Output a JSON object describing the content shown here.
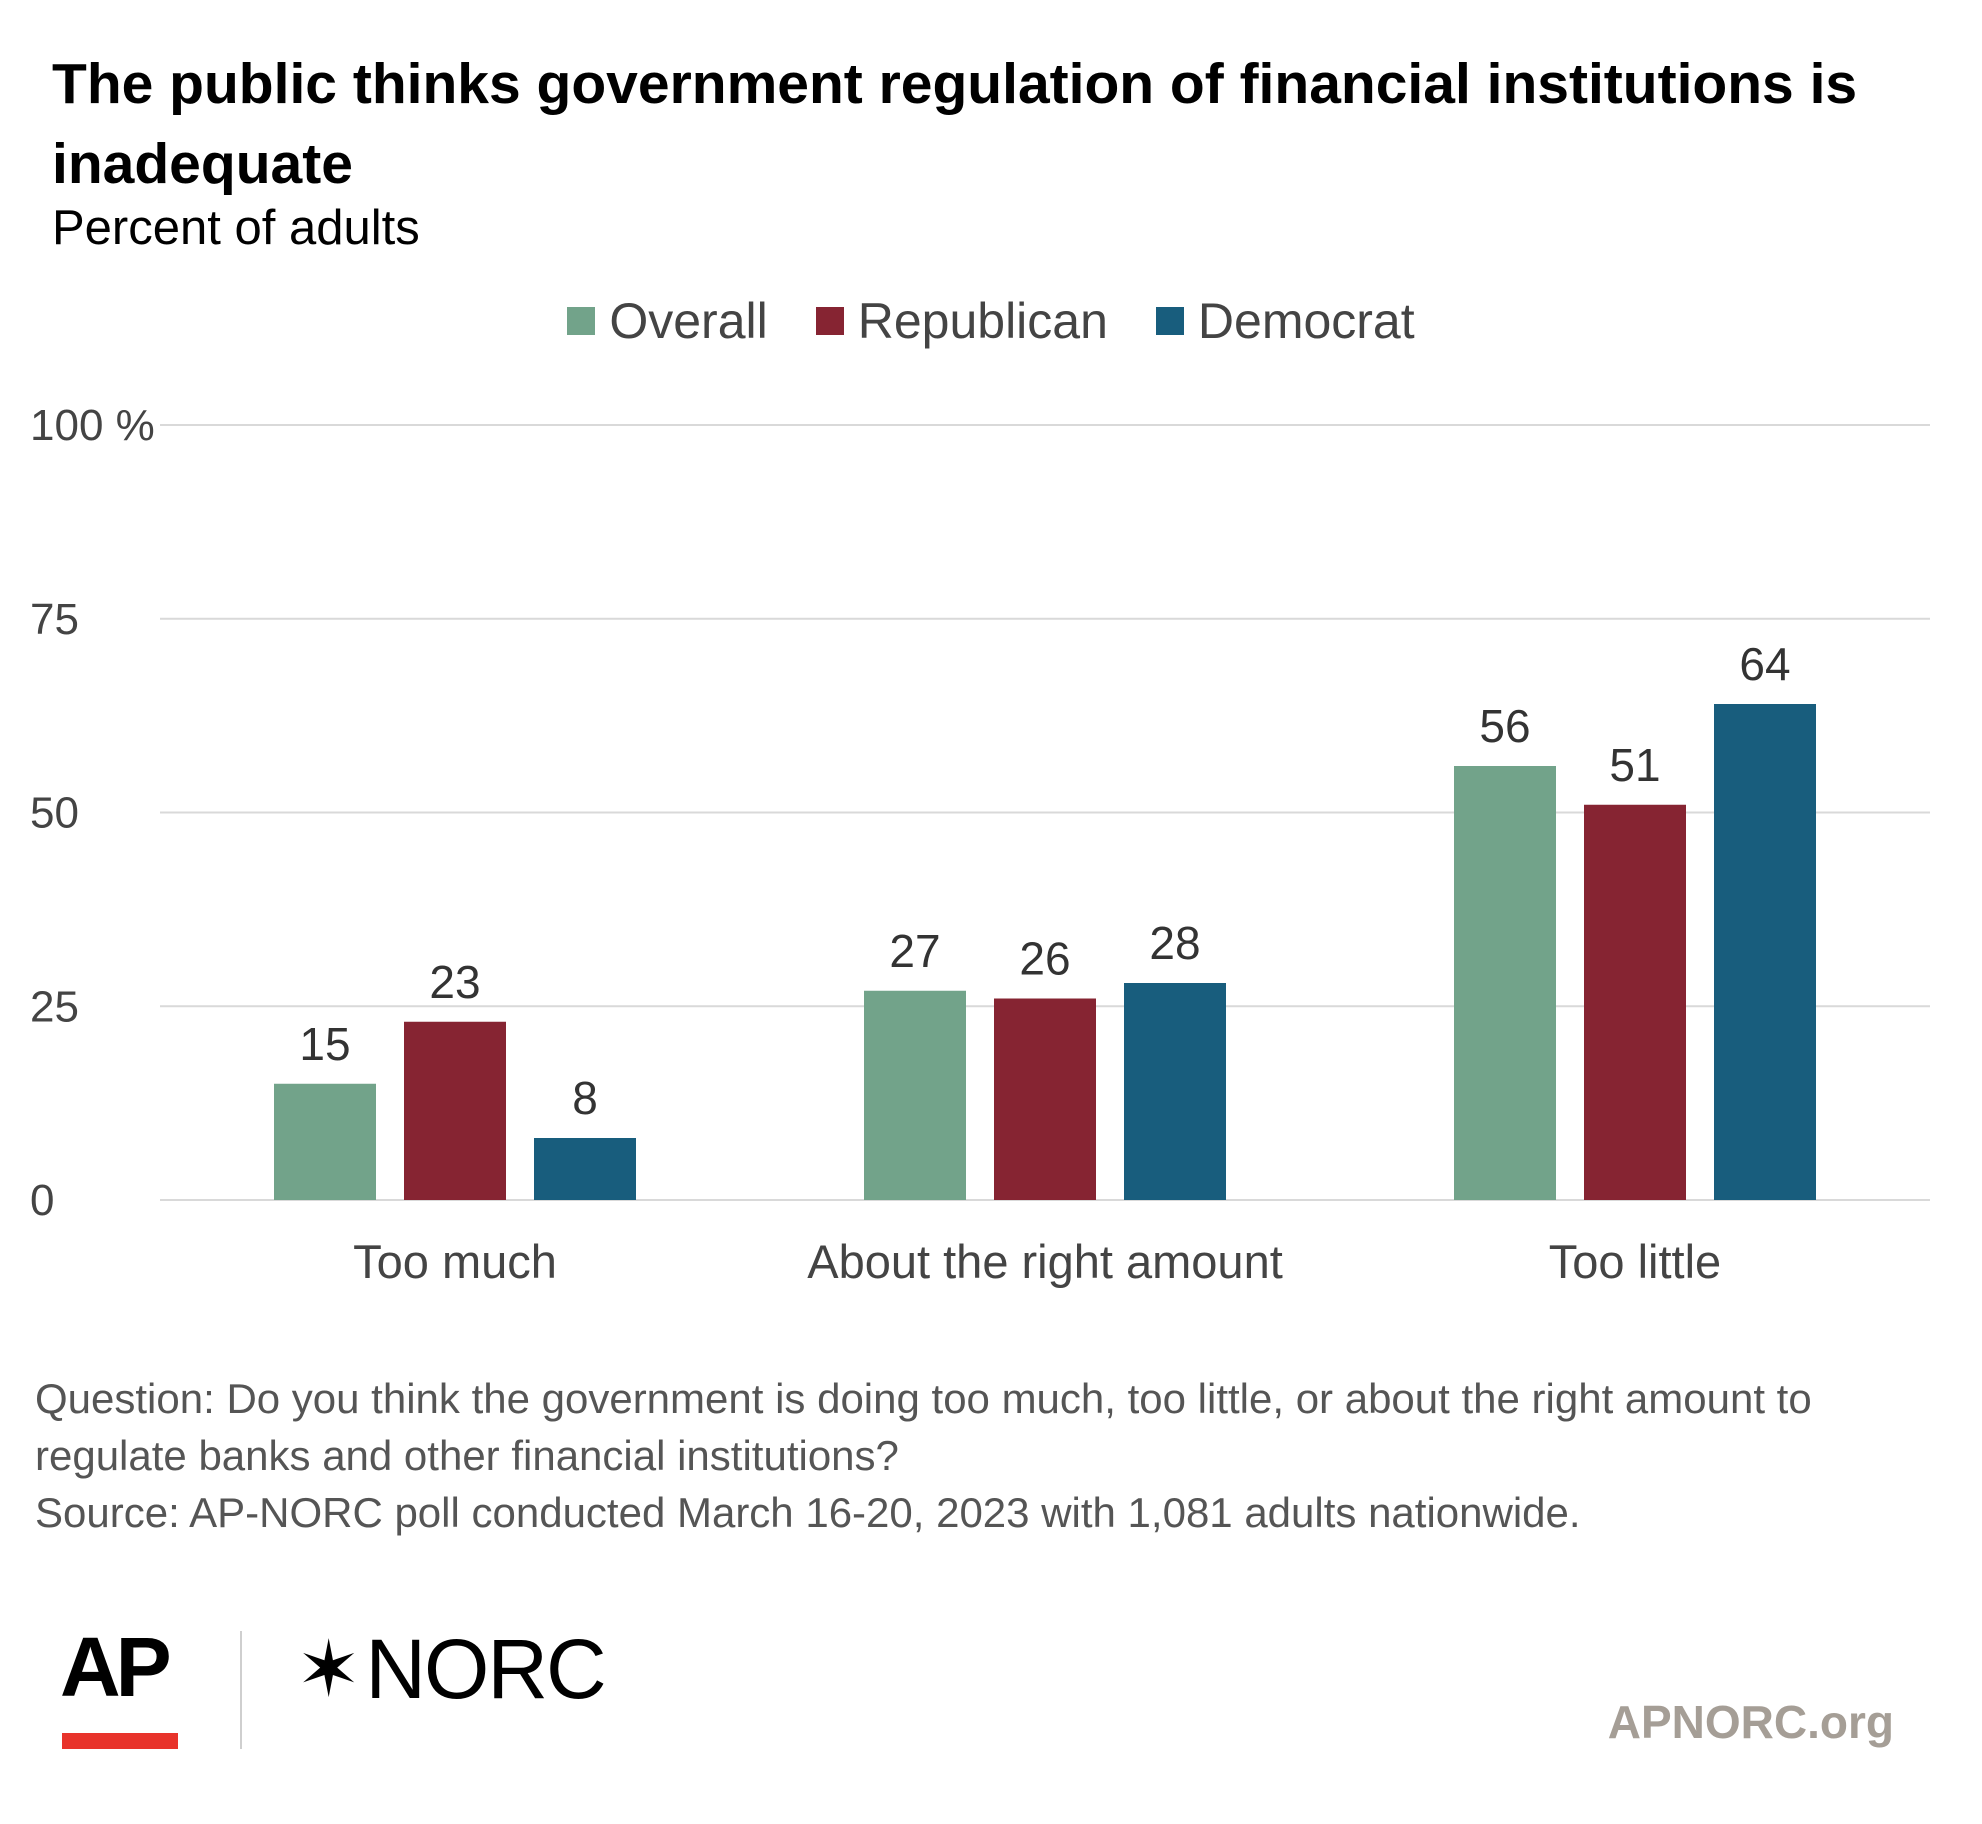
{
  "chart_data": {
    "type": "bar",
    "title": "The public thinks government regulation of financial institutions is inadequate",
    "subtitle": "Percent of adults",
    "categories": [
      "Too much",
      "About the right amount",
      "Too little"
    ],
    "series": [
      {
        "name": "Overall",
        "color": "#72a38a",
        "values": [
          15,
          27,
          56
        ]
      },
      {
        "name": "Republican",
        "color": "#862432",
        "values": [
          23,
          26,
          51
        ]
      },
      {
        "name": "Democrat",
        "color": "#185d7d",
        "values": [
          8,
          28,
          64
        ]
      }
    ],
    "ylim": [
      0,
      100
    ],
    "yticks": [
      0,
      25,
      50,
      75,
      100
    ],
    "ytick_labels": [
      "0",
      "25",
      "50",
      "75",
      "100 %"
    ],
    "grid": true,
    "legend_position": "top-center",
    "xlabel": "",
    "ylabel": ""
  },
  "footnote": {
    "question": "Question: Do you think the government is doing too much, too little, or about the right amount to regulate banks and other financial institutions?",
    "source": "Source: AP-NORC poll conducted March 16-20, 2023 with 1,081 adults nationwide."
  },
  "logos": {
    "ap": "AP",
    "norc": "NORC",
    "norc_icon": "star-icon",
    "site": "APNORC.org"
  }
}
